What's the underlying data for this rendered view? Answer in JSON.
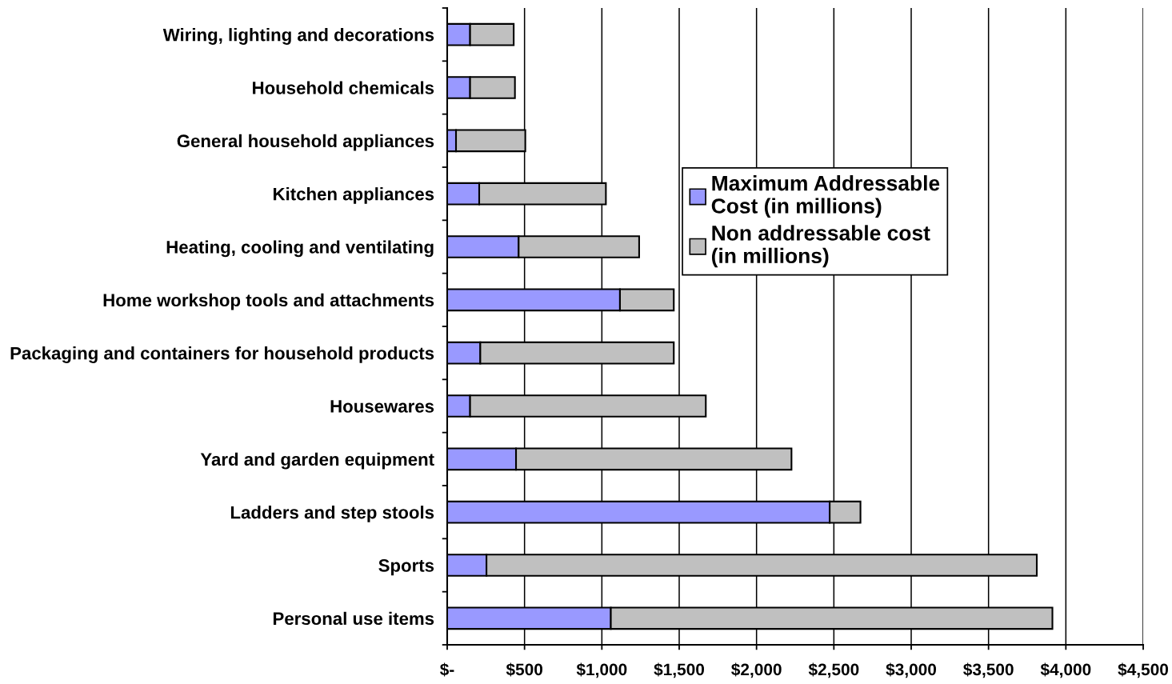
{
  "chart_data": {
    "type": "bar",
    "orientation": "horizontal",
    "stacked": true,
    "categories": [
      "Wiring, lighting and decorations",
      "Household chemicals",
      "General household appliances",
      "Kitchen appliances",
      "Heating, cooling and ventilating",
      "Home workshop tools and attachments",
      "Packaging and containers for household products",
      "Housewares",
      "Yard and garden equipment",
      "Ladders and step stools",
      "Sports",
      "Personal use items"
    ],
    "series": [
      {
        "name": "Maximum Addressable\nCost (in millions)",
        "color": "#9999ff",
        "values": [
          148,
          148,
          57,
          207,
          462,
          1117,
          214,
          148,
          445,
          2473,
          254,
          1058
        ]
      },
      {
        "name": "Non addressable cost\n(in millions)",
        "color": "#c0c0c0",
        "values": [
          282,
          290,
          448,
          819,
          779,
          348,
          1251,
          1524,
          1781,
          199,
          3558,
          2855
        ]
      }
    ],
    "xlim": [
      0,
      4500
    ],
    "xticks": [
      {
        "value": 0,
        "label": "$-"
      },
      {
        "value": 500,
        "label": "$500"
      },
      {
        "value": 1000,
        "label": "$1,000"
      },
      {
        "value": 1500,
        "label": "$1,500"
      },
      {
        "value": 2000,
        "label": "$2,000"
      },
      {
        "value": 2500,
        "label": "$2,500"
      },
      {
        "value": 3000,
        "label": "$3,000"
      },
      {
        "value": 3500,
        "label": "$3,500"
      },
      {
        "value": 4000,
        "label": "$4,000"
      },
      {
        "value": 4500,
        "label": "$4,500"
      }
    ],
    "grid": "x",
    "legend": "center"
  }
}
